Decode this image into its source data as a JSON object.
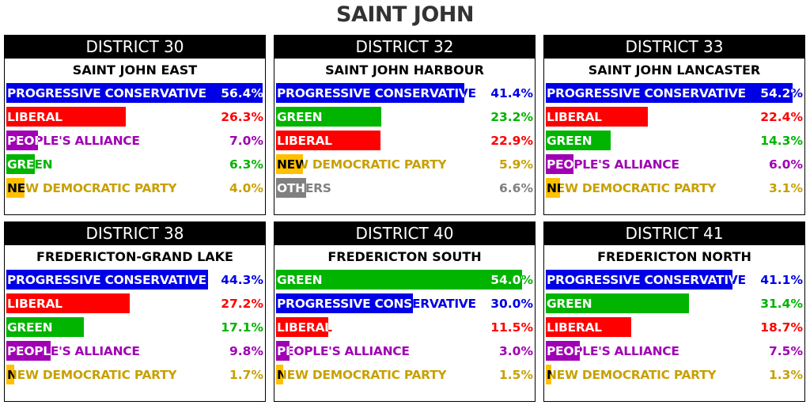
{
  "title": "SAINT JOHN",
  "colors": {
    "PROGRESSIVE CONSERVATIVE": "#0000e6",
    "LIBERAL": "#ff0000",
    "PEOPLE'S ALLIANCE": "#a000b4",
    "GREEN": "#00b400",
    "NEW DEMOCRATIC PARTY": "#ffc000",
    "OTHERS": "#808080"
  },
  "text_colors": {
    "PROGRESSIVE CONSERVATIVE": "#0000e6",
    "LIBERAL": "#ff0000",
    "PEOPLE'S ALLIANCE": "#a000b4",
    "GREEN": "#00b400",
    "NEW DEMOCRATIC PARTY": "#c8a000",
    "OTHERS": "#808080"
  },
  "label_inside_color": "#ffffff",
  "label_inside_color_ndp": "#000000",
  "districts": [
    {
      "header": "DISTRICT 30",
      "name": "SAINT JOHN EAST",
      "results": [
        {
          "party": "PROGRESSIVE CONSERVATIVE",
          "pct": 56.4,
          "label": "56.4%"
        },
        {
          "party": "LIBERAL",
          "pct": 26.3,
          "label": "26.3%"
        },
        {
          "party": "PEOPLE'S ALLIANCE",
          "pct": 7.0,
          "label": "7.0%"
        },
        {
          "party": "GREEN",
          "pct": 6.3,
          "label": "6.3%"
        },
        {
          "party": "NEW DEMOCRATIC PARTY",
          "pct": 4.0,
          "label": "4.0%"
        }
      ]
    },
    {
      "header": "DISTRICT 32",
      "name": "SAINT JOHN HARBOUR",
      "results": [
        {
          "party": "PROGRESSIVE CONSERVATIVE",
          "pct": 41.4,
          "label": "41.4%"
        },
        {
          "party": "GREEN",
          "pct": 23.2,
          "label": "23.2%"
        },
        {
          "party": "LIBERAL",
          "pct": 22.9,
          "label": "22.9%"
        },
        {
          "party": "NEW DEMOCRATIC PARTY",
          "pct": 5.9,
          "label": "5.9%"
        },
        {
          "party": "OTHERS",
          "pct": 6.6,
          "label": "6.6%"
        }
      ]
    },
    {
      "header": "DISTRICT 33",
      "name": "SAINT JOHN LANCASTER",
      "results": [
        {
          "party": "PROGRESSIVE CONSERVATIVE",
          "pct": 54.2,
          "label": "54.2%"
        },
        {
          "party": "LIBERAL",
          "pct": 22.4,
          "label": "22.4%"
        },
        {
          "party": "GREEN",
          "pct": 14.3,
          "label": "14.3%"
        },
        {
          "party": "PEOPLE'S ALLIANCE",
          "pct": 6.0,
          "label": "6.0%"
        },
        {
          "party": "NEW DEMOCRATIC PARTY",
          "pct": 3.1,
          "label": "3.1%"
        }
      ]
    },
    {
      "header": "DISTRICT 38",
      "name": "FREDERICTON-GRAND LAKE",
      "results": [
        {
          "party": "PROGRESSIVE CONSERVATIVE",
          "pct": 44.3,
          "label": "44.3%"
        },
        {
          "party": "LIBERAL",
          "pct": 27.2,
          "label": "27.2%"
        },
        {
          "party": "GREEN",
          "pct": 17.1,
          "label": "17.1%"
        },
        {
          "party": "PEOPLE'S ALLIANCE",
          "pct": 9.8,
          "label": "9.8%"
        },
        {
          "party": "NEW DEMOCRATIC PARTY",
          "pct": 1.7,
          "label": "1.7%"
        }
      ]
    },
    {
      "header": "DISTRICT 40",
      "name": "FREDERICTON SOUTH",
      "results": [
        {
          "party": "GREEN",
          "pct": 54.0,
          "label": "54.0%"
        },
        {
          "party": "PROGRESSIVE CONSERVATIVE",
          "pct": 30.0,
          "label": "30.0%"
        },
        {
          "party": "LIBERAL",
          "pct": 11.5,
          "label": "11.5%"
        },
        {
          "party": "PEOPLE'S ALLIANCE",
          "pct": 3.0,
          "label": "3.0%"
        },
        {
          "party": "NEW DEMOCRATIC PARTY",
          "pct": 1.5,
          "label": "1.5%"
        }
      ]
    },
    {
      "header": "DISTRICT 41",
      "name": "FREDERICTON NORTH",
      "results": [
        {
          "party": "PROGRESSIVE CONSERVATIVE",
          "pct": 41.1,
          "label": "41.1%"
        },
        {
          "party": "GREEN",
          "pct": 31.4,
          "label": "31.4%"
        },
        {
          "party": "LIBERAL",
          "pct": 18.7,
          "label": "18.7%"
        },
        {
          "party": "PEOPLE'S ALLIANCE",
          "pct": 7.5,
          "label": "7.5%"
        },
        {
          "party": "NEW DEMOCRATIC PARTY",
          "pct": 1.3,
          "label": "1.3%"
        }
      ]
    }
  ]
}
